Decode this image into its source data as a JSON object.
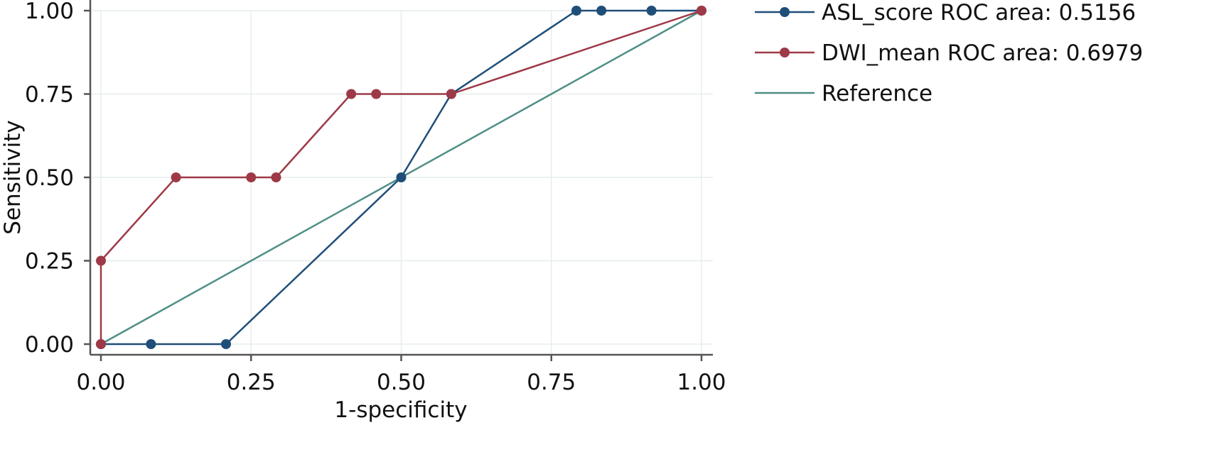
{
  "chart_data": {
    "type": "line",
    "title": "",
    "xlabel": "1-specificity",
    "ylabel": "Sensitivity",
    "xlim": [
      0,
      1
    ],
    "ylim": [
      0,
      1
    ],
    "x_ticks": [
      0,
      0.25,
      0.5,
      0.75,
      1
    ],
    "x_tick_labels": [
      "0.00",
      "0.25",
      "0.50",
      "0.75",
      "1.00"
    ],
    "y_ticks": [
      0,
      0.25,
      0.5,
      0.75,
      1
    ],
    "y_tick_labels": [
      "0.00",
      "0.25",
      "0.50",
      "0.75",
      "1.00"
    ],
    "grid": true,
    "legend_position": "right",
    "series": [
      {
        "name": "ASL_score ROC area: 0.5156",
        "color": "#1f4e79",
        "markers": true,
        "x": [
          0,
          0.0833,
          0.2083,
          0.5,
          0.5833,
          0.7917,
          0.8333,
          0.9167,
          1
        ],
        "y": [
          0,
          0,
          0,
          0.5,
          0.75,
          1,
          1,
          1,
          1
        ]
      },
      {
        "name": "DWI_mean ROC area: 0.6979",
        "color": "#9e3a47",
        "markers": true,
        "x": [
          0,
          0,
          0.125,
          0.25,
          0.2917,
          0.4167,
          0.4583,
          0.5833,
          1
        ],
        "y": [
          0,
          0.25,
          0.5,
          0.5,
          0.5,
          0.75,
          0.75,
          0.75,
          1
        ]
      },
      {
        "name": "Reference",
        "color": "#4f8f86",
        "markers": false,
        "x": [
          0,
          1
        ],
        "y": [
          0,
          1
        ]
      }
    ]
  }
}
